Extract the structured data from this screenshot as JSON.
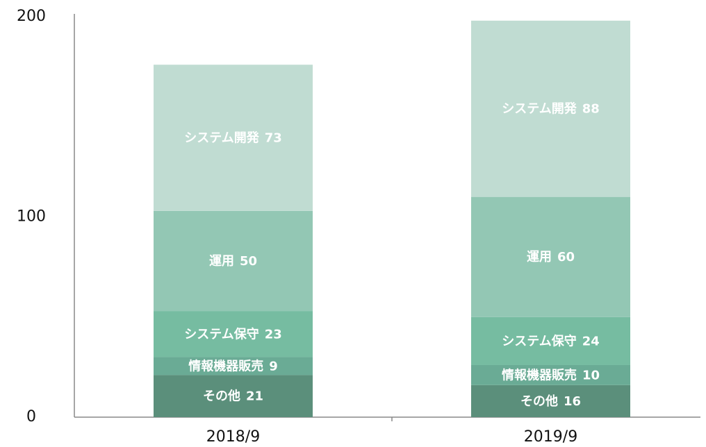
{
  "chart_data": {
    "type": "stacked_bar",
    "categories": [
      "2018/9",
      "2019/9"
    ],
    "series": [
      {
        "name": "その他",
        "color": "#5b8f7b",
        "values": [
          21,
          16
        ]
      },
      {
        "name": "情報機器販売",
        "color": "#6aab95",
        "values": [
          9,
          10
        ]
      },
      {
        "name": "システム保守",
        "color": "#76bca1",
        "values": [
          23,
          24
        ]
      },
      {
        "name": "運用",
        "color": "#93c7b4",
        "values": [
          50,
          60
        ]
      },
      {
        "name": "システム開発",
        "color": "#c0dcd2",
        "values": [
          73,
          88
        ]
      }
    ],
    "ylim": [
      0,
      200
    ],
    "yticks": [
      0,
      100,
      200
    ],
    "grid": false
  }
}
